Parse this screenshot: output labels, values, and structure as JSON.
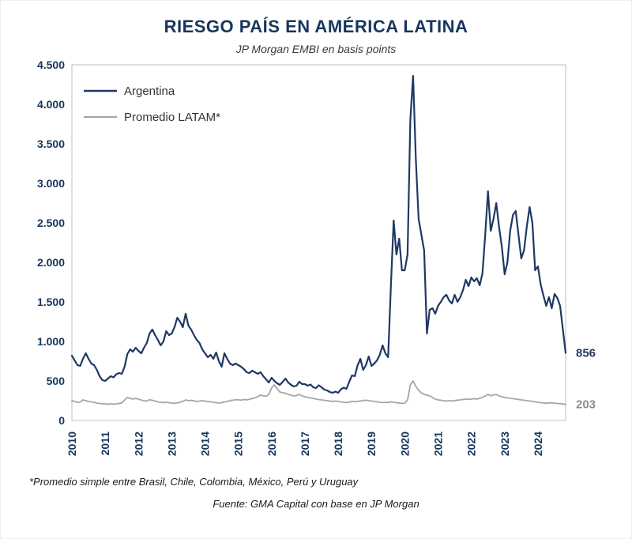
{
  "chart_data": {
    "type": "line",
    "title": "RIESGO PAÍS EN AMÉRICA LATINA",
    "subtitle": "JP Morgan EMBI en basis points",
    "ylim": [
      0,
      4500
    ],
    "y_tick_values": [
      0,
      500,
      1000,
      1500,
      2000,
      2500,
      3000,
      3500,
      4000,
      4500
    ],
    "y_tick_labels": [
      "0",
      "500",
      "1.000",
      "1.500",
      "2.000",
      "2.500",
      "3.000",
      "3.500",
      "4.000",
      "4.500"
    ],
    "x_tick_labels": [
      "2010",
      "2011",
      "2012",
      "2013",
      "2014",
      "2015",
      "2016",
      "2017",
      "2018",
      "2019",
      "2020",
      "2021",
      "2022",
      "2023",
      "2024"
    ],
    "x_start_year": 2010,
    "points_per_year": 12,
    "grid": false,
    "legend_position": "top-left",
    "series": [
      {
        "name": "Argentina",
        "color": "#1f3864",
        "width": 2.2,
        "values": [
          820,
          760,
          700,
          690,
          780,
          850,
          780,
          720,
          700,
          640,
          560,
          510,
          500,
          530,
          560,
          545,
          585,
          600,
          590,
          680,
          840,
          900,
          870,
          920,
          880,
          850,
          920,
          980,
          1100,
          1150,
          1080,
          1020,
          950,
          1000,
          1130,
          1080,
          1100,
          1180,
          1300,
          1250,
          1180,
          1350,
          1200,
          1150,
          1080,
          1020,
          980,
          900,
          850,
          800,
          830,
          780,
          860,
          750,
          680,
          850,
          780,
          720,
          700,
          720,
          700,
          680,
          650,
          610,
          600,
          630,
          610,
          590,
          610,
          560,
          520,
          480,
          540,
          500,
          470,
          450,
          490,
          530,
          480,
          450,
          430,
          440,
          490,
          460,
          460,
          440,
          455,
          420,
          410,
          445,
          420,
          390,
          380,
          360,
          350,
          365,
          350,
          395,
          415,
          400,
          490,
          570,
          560,
          700,
          780,
          640,
          700,
          810,
          690,
          720,
          760,
          830,
          950,
          850,
          800,
          1700,
          2530,
          2100,
          2300,
          1900,
          1900,
          2100,
          3800,
          4360,
          3300,
          2550,
          2350,
          2150,
          1100,
          1400,
          1420,
          1350,
          1450,
          1500,
          1560,
          1590,
          1520,
          1480,
          1590,
          1500,
          1560,
          1650,
          1780,
          1700,
          1810,
          1760,
          1800,
          1710,
          1860,
          2350,
          2900,
          2400,
          2550,
          2750,
          2450,
          2200,
          1850,
          2000,
          2400,
          2600,
          2650,
          2350,
          2050,
          2150,
          2450,
          2700,
          2500,
          1900,
          1950,
          1720,
          1580,
          1450,
          1560,
          1420,
          1600,
          1550,
          1450,
          1150,
          856
        ]
      },
      {
        "name": "Promedio LATAM*",
        "color": "#a6a6a6",
        "width": 1.8,
        "values": [
          250,
          240,
          230,
          232,
          260,
          250,
          240,
          235,
          230,
          220,
          215,
          210,
          210,
          205,
          212,
          205,
          210,
          215,
          222,
          260,
          290,
          280,
          270,
          280,
          270,
          258,
          250,
          245,
          262,
          255,
          245,
          235,
          230,
          225,
          232,
          225,
          220,
          215,
          222,
          230,
          242,
          260,
          250,
          255,
          250,
          240,
          245,
          250,
          245,
          240,
          235,
          230,
          225,
          220,
          226,
          232,
          240,
          252,
          256,
          262,
          262,
          256,
          266,
          260,
          268,
          276,
          286,
          300,
          322,
          310,
          306,
          330,
          410,
          450,
          400,
          360,
          350,
          345,
          330,
          320,
          310,
          315,
          330,
          310,
          300,
          290,
          285,
          280,
          270,
          265,
          260,
          255,
          250,
          246,
          240,
          246,
          240,
          235,
          230,
          226,
          232,
          242,
          236,
          242,
          246,
          252,
          256,
          250,
          246,
          240,
          236,
          230,
          226,
          230,
          226,
          236,
          230,
          226,
          220,
          216,
          220,
          260,
          450,
          500,
          430,
          380,
          350,
          330,
          320,
          310,
          290,
          270,
          260,
          256,
          250,
          246,
          250,
          246,
          252,
          256,
          260,
          266,
          270,
          266,
          270,
          276,
          270,
          280,
          292,
          310,
          330,
          312,
          322,
          330,
          310,
          300,
          290,
          286,
          280,
          276,
          270,
          266,
          260,
          256,
          250,
          246,
          240,
          236,
          230,
          226,
          220,
          218,
          221,
          223,
          218,
          215,
          212,
          208,
          203
        ]
      }
    ],
    "end_labels": [
      {
        "text": "856",
        "color": "#1f3864"
      },
      {
        "text": "203",
        "color": "#8c8c8c"
      }
    ]
  },
  "footnotes": [
    "*Promedio simple entre Brasil, Chile, Colombia, México, Perú y Uruguay",
    "Fuente: GMA Capital con base en JP Morgan"
  ]
}
